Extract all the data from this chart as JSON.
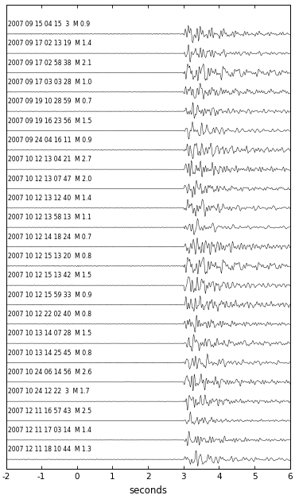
{
  "events": [
    {
      "label": "2007 09 15 04 15  3  M 0.9",
      "magnitude": 0.9
    },
    {
      "label": "2007 09 17 02 13 19  M 1.4",
      "magnitude": 1.4
    },
    {
      "label": "2007 09 17 02 58 38  M 2.1",
      "magnitude": 2.1
    },
    {
      "label": "2007 09 17 03 03 28  M 1.0",
      "magnitude": 1.0
    },
    {
      "label": "2007 09 19 10 28 59  M 0.7",
      "magnitude": 0.7
    },
    {
      "label": "2007 09 19 16 23 56  M 1.5",
      "magnitude": 1.5
    },
    {
      "label": "2007 09 24 04 16 11  M 0.9",
      "magnitude": 0.9
    },
    {
      "label": "2007 10 12 13 04 21  M 2.7",
      "magnitude": 2.7
    },
    {
      "label": "2007 10 12 13 07 47  M 2.0",
      "magnitude": 2.0
    },
    {
      "label": "2007 10 12 13 12 40  M 1.4",
      "magnitude": 1.4
    },
    {
      "label": "2007 10 12 13 58 13  M 1.1",
      "magnitude": 1.1
    },
    {
      "label": "2007 10 12 14 18 24  M 0.7",
      "magnitude": 0.7
    },
    {
      "label": "2007 10 12 15 13 20  M 0.8",
      "magnitude": 0.8
    },
    {
      "label": "2007 10 12 15 13 42  M 1.5",
      "magnitude": 1.5
    },
    {
      "label": "2007 10 12 15 59 33  M 0.9",
      "magnitude": 0.9
    },
    {
      "label": "2007 10 12 22 02 40  M 0.8",
      "magnitude": 0.8
    },
    {
      "label": "2007 10 13 14 07 28  M 1.5",
      "magnitude": 1.5
    },
    {
      "label": "2007 10 13 14 25 45  M 0.8",
      "magnitude": 0.8
    },
    {
      "label": "2007 10 24 06 14 56  M 2.6",
      "magnitude": 2.6
    },
    {
      "label": "2007 10 24 12 22  3  M 1.7",
      "magnitude": 1.7
    },
    {
      "label": "2007 12 11 16 57 43  M 2.5",
      "magnitude": 2.5
    },
    {
      "label": "2007 12 11 17 03 14  M 1.4",
      "magnitude": 1.4
    },
    {
      "label": "2007 12 11 18 10 44  M 1.3",
      "magnitude": 1.3
    }
  ],
  "xlim": [
    -2,
    6
  ],
  "xticks": [
    -2,
    -1,
    0,
    1,
    2,
    3,
    4,
    5,
    6
  ],
  "xlabel": "seconds",
  "background_color": "#ffffff",
  "line_color": "#000000",
  "p_arrival": 3.0,
  "label_fontsize": 5.5,
  "tick_fontsize": 7.5,
  "xlabel_fontsize": 8.5
}
